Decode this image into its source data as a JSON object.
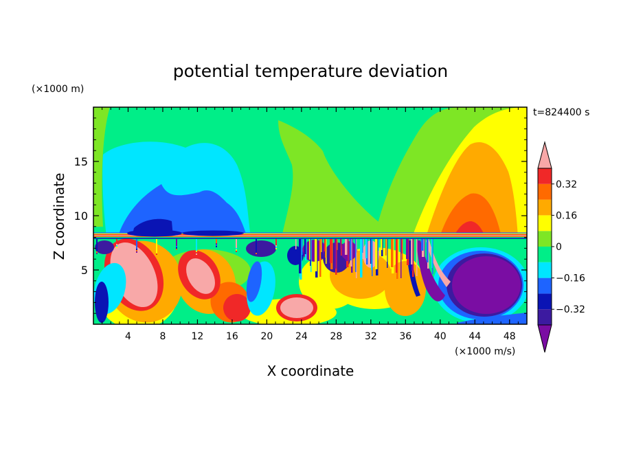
{
  "chart_data": {
    "type": "heatmap",
    "title": "potential temperature deviation",
    "xlabel": "X coordinate",
    "ylabel": "Z coordinate",
    "x_unit": "(×1000 m/s)",
    "y_unit": "(×1000 m)",
    "time_label": "t=824400 s",
    "xlim": [
      0,
      50
    ],
    "ylim": [
      0,
      20
    ],
    "x_ticks": [
      4,
      8,
      12,
      16,
      20,
      24,
      28,
      32,
      36,
      40,
      44,
      48
    ],
    "y_ticks": [
      5,
      10,
      15
    ],
    "colorbar": {
      "levels": [
        -0.4,
        -0.32,
        -0.24,
        -0.16,
        -0.08,
        0,
        0.08,
        0.16,
        0.24,
        0.32,
        0.4
      ],
      "tick_labels": [
        "0.32",
        "0.16",
        "0",
        "−0.16",
        "−0.32"
      ],
      "tick_values": [
        0.32,
        0.16,
        0,
        -0.16,
        -0.32
      ],
      "colors": [
        "#7a0da3",
        "#3c1aa0",
        "#0a14b4",
        "#1e64ff",
        "#00e6ff",
        "#00ee88",
        "#7ee625",
        "#ffff00",
        "#ffaa00",
        "#ff6a00",
        "#f02828",
        "#f8a8a8"
      ],
      "extend": "both"
    }
  }
}
